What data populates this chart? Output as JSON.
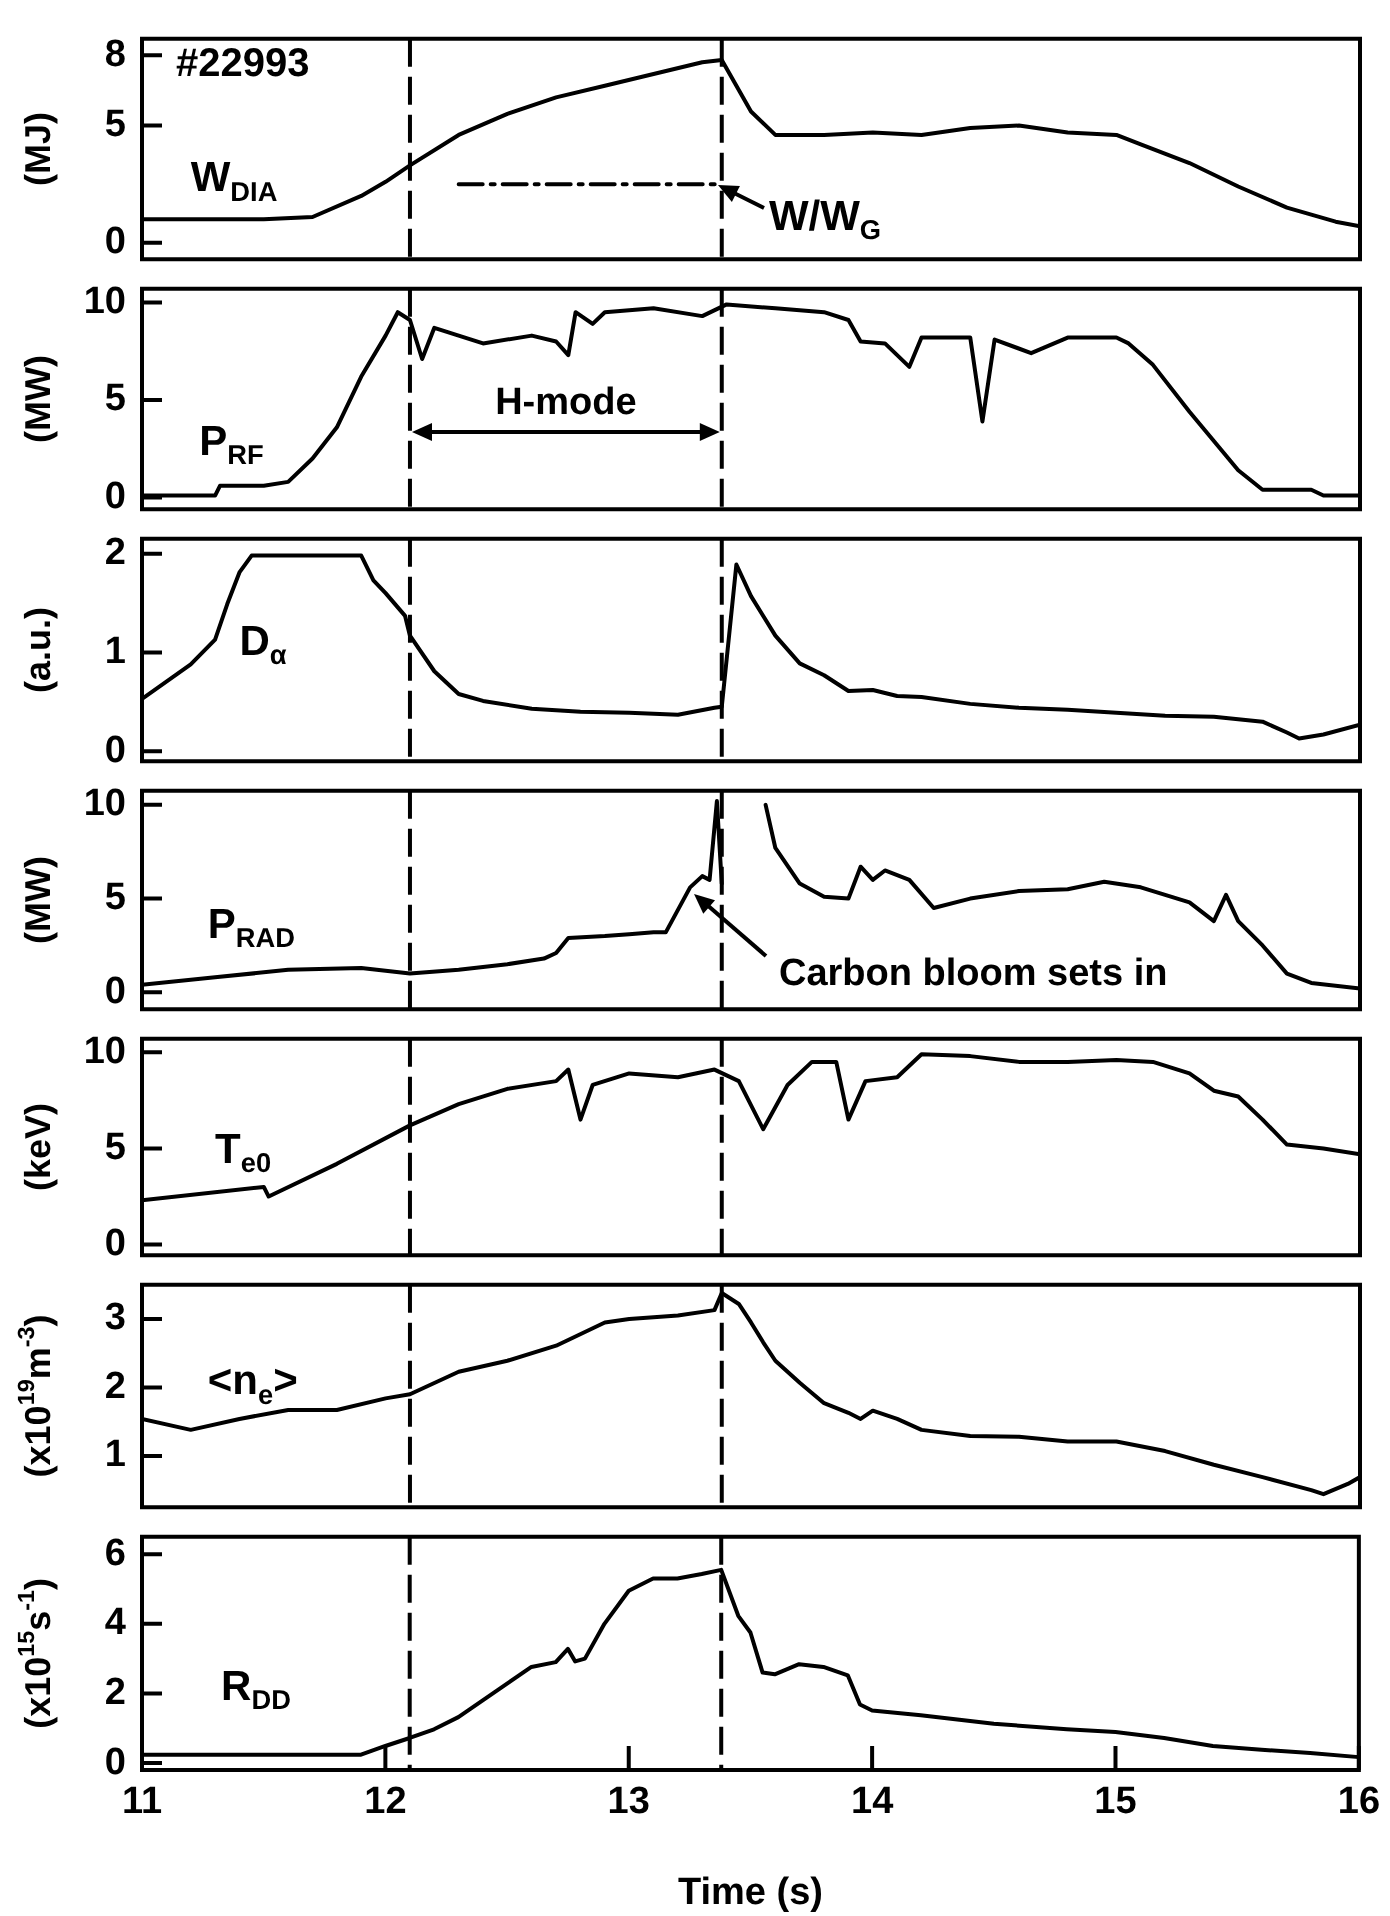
{
  "chart_data": [
    {
      "type": "line",
      "ylabel": "(MJ)",
      "xlim": [
        11,
        16
      ],
      "xticks": [
        11,
        12,
        13,
        14,
        15,
        16
      ],
      "ylim": [
        -0.7,
        8.7
      ],
      "yticks": [
        0,
        5,
        8
      ],
      "tick_labels": "y",
      "x": [
        11.0,
        11.5,
        11.7,
        11.9,
        12.0,
        12.1,
        12.3,
        12.5,
        12.7,
        12.9,
        13.1,
        13.3,
        13.38,
        13.5,
        13.6,
        13.8,
        14.0,
        14.2,
        14.4,
        14.6,
        14.8,
        15.0,
        15.1,
        15.3,
        15.5,
        15.7,
        15.9,
        16.0
      ],
      "series": [
        {
          "name": "W$_{DIA}$",
          "color": "#000000",
          "values": [
            1.0,
            1.0,
            1.1,
            2.0,
            2.6,
            3.3,
            4.6,
            5.5,
            6.2,
            6.7,
            7.2,
            7.7,
            7.8,
            5.6,
            4.6,
            4.6,
            4.7,
            4.6,
            4.9,
            5.0,
            4.7,
            4.6,
            4.2,
            3.4,
            2.4,
            1.5,
            0.9,
            0.7
          ]
        },
        {
          "color": "#000000",
          "line_style": "dashed",
          "x": [
            12.3,
            13.36
          ],
          "values": [
            2.5,
            2.5
          ]
        }
      ],
      "ref_lines": [
        {
          "axis": "x",
          "value": 12.1,
          "line_style": "dashed",
          "color": "#000000"
        },
        {
          "axis": "x",
          "value": 13.38,
          "line_style": "dashed",
          "color": "#000000"
        }
      ],
      "annotations": [
        "#22993",
        {
          "text": "W/W$_{G}$",
          "x": 13.36,
          "y": 2.5
        }
      ]
    },
    {
      "type": "line",
      "ylabel": "(MW)",
      "xlim": [
        11,
        16
      ],
      "xticks": [
        11,
        12,
        13,
        14,
        15,
        16
      ],
      "ylim": [
        -0.6,
        10.7
      ],
      "yticks": [
        0,
        5,
        10
      ],
      "tick_labels": "y",
      "legend": false,
      "x": [
        11.0,
        11.3,
        11.32,
        11.5,
        11.6,
        11.7,
        11.8,
        11.9,
        12.0,
        12.05,
        12.1,
        12.15,
        12.2,
        12.4,
        12.6,
        12.7,
        12.75,
        12.78,
        12.85,
        12.9,
        13.1,
        13.3,
        13.4,
        13.6,
        13.8,
        13.9,
        13.95,
        14.05,
        14.15,
        14.2,
        14.4,
        14.45,
        14.5,
        14.65,
        14.8,
        15.0,
        15.05,
        15.15,
        15.3,
        15.5,
        15.6,
        15.8,
        15.85,
        16.0
      ],
      "series": [
        {
          "name": "P$_{RF}$",
          "color": "#000000",
          "values": [
            0.1,
            0.1,
            0.6,
            0.6,
            0.8,
            2.0,
            3.6,
            6.2,
            8.3,
            9.5,
            9.1,
            7.1,
            8.7,
            7.9,
            8.3,
            8.0,
            7.3,
            9.5,
            8.9,
            9.5,
            9.7,
            9.3,
            9.9,
            9.7,
            9.5,
            9.1,
            8.0,
            7.9,
            6.7,
            8.2,
            8.2,
            3.9,
            8.1,
            7.4,
            8.2,
            8.2,
            7.9,
            6.8,
            4.4,
            1.4,
            0.4,
            0.4,
            0.1,
            0.1
          ]
        }
      ],
      "ref_lines": [
        {
          "axis": "x",
          "value": 12.1,
          "line_style": "dashed",
          "color": "#000000"
        },
        {
          "axis": "x",
          "value": 13.38,
          "line_style": "dashed",
          "color": "#000000"
        }
      ],
      "annotations": [
        "H-mode"
      ]
    },
    {
      "type": "line",
      "ylabel": "(a.u.)",
      "xlim": [
        11,
        16
      ],
      "xticks": [
        11,
        12,
        13,
        14,
        15,
        16
      ],
      "ylim": [
        -0.1,
        2.15
      ],
      "yticks": [
        0,
        1,
        2
      ],
      "tick_labels": "y",
      "legend": false,
      "x": [
        11.0,
        11.2,
        11.3,
        11.35,
        11.4,
        11.45,
        11.9,
        11.95,
        12.0,
        12.08,
        12.1,
        12.2,
        12.3,
        12.4,
        12.6,
        12.8,
        13.0,
        13.2,
        13.35,
        13.38,
        13.44,
        13.5,
        13.6,
        13.7,
        13.8,
        13.9,
        14.0,
        14.1,
        14.2,
        14.4,
        14.6,
        14.8,
        15.0,
        15.2,
        15.4,
        15.6,
        15.7,
        15.75,
        15.85,
        16.0
      ],
      "series": [
        {
          "name": "D$_{α}$",
          "color": "#000000",
          "values": [
            0.53,
            0.88,
            1.13,
            1.49,
            1.81,
            1.98,
            1.98,
            1.73,
            1.6,
            1.37,
            1.17,
            0.81,
            0.58,
            0.51,
            0.43,
            0.4,
            0.39,
            0.37,
            0.44,
            0.45,
            1.89,
            1.57,
            1.17,
            0.89,
            0.77,
            0.61,
            0.62,
            0.56,
            0.55,
            0.48,
            0.44,
            0.42,
            0.39,
            0.36,
            0.35,
            0.3,
            0.19,
            0.13,
            0.17,
            0.27
          ]
        }
      ],
      "ref_lines": [
        {
          "axis": "x",
          "value": 12.1,
          "line_style": "dashed",
          "color": "#000000"
        },
        {
          "axis": "x",
          "value": 13.38,
          "line_style": "dashed",
          "color": "#000000"
        }
      ]
    },
    {
      "type": "line",
      "ylabel": "(MW)",
      "xlim": [
        11,
        16
      ],
      "xticks": [
        11,
        12,
        13,
        14,
        15,
        16
      ],
      "ylim": [
        -0.9,
        10.75
      ],
      "yticks": [
        0,
        5,
        10
      ],
      "tick_labels": "y",
      "legend": false,
      "x": [
        11.0,
        11.3,
        11.6,
        11.9,
        12.1,
        12.3,
        12.5,
        12.65,
        12.7,
        12.75,
        12.9,
        13.0,
        13.1,
        13.15,
        13.25,
        13.3,
        13.33,
        13.36,
        13.38,
        13.45,
        13.56,
        13.6,
        13.7,
        13.8,
        13.9,
        13.95,
        14.0,
        14.05,
        14.15,
        14.25,
        14.4,
        14.6,
        14.8,
        14.95,
        15.1,
        15.3,
        15.4,
        15.45,
        15.5,
        15.6,
        15.7,
        15.8,
        16.0
      ],
      "series": [
        {
          "name": "P$_{RAD}$",
          "color": "#000000",
          "values": [
            0.4,
            0.8,
            1.2,
            1.3,
            1.0,
            1.2,
            1.5,
            1.8,
            2.1,
            2.9,
            3.0,
            3.1,
            3.2,
            3.2,
            5.6,
            6.2,
            6.0,
            10.2,
            5.8,
            null,
            10.0,
            7.7,
            5.8,
            5.1,
            5.0,
            6.7,
            6.0,
            6.5,
            6.0,
            4.5,
            5.0,
            5.4,
            5.5,
            5.9,
            5.6,
            4.8,
            3.8,
            5.2,
            3.8,
            2.5,
            1.0,
            0.5,
            0.2
          ]
        }
      ],
      "ref_lines": [
        {
          "axis": "x",
          "value": 12.1,
          "line_style": "dashed",
          "color": "#000000"
        },
        {
          "axis": "x",
          "value": 13.38,
          "line_style": "dashed",
          "color": "#000000"
        }
      ],
      "annotations": [
        {
          "text": "Carbon bloom sets in",
          "x": 13.27,
          "y": 5.2
        }
      ]
    },
    {
      "type": "line",
      "ylabel": "(keV)",
      "xlim": [
        11,
        16
      ],
      "xticks": [
        11,
        12,
        13,
        14,
        15,
        16
      ],
      "ylim": [
        -0.55,
        10.7
      ],
      "yticks": [
        0,
        5,
        10
      ],
      "tick_labels": "y",
      "legend": false,
      "x": [
        11.0,
        11.5,
        11.52,
        11.8,
        12.1,
        12.3,
        12.5,
        12.7,
        12.75,
        12.8,
        12.85,
        13.0,
        13.2,
        13.35,
        13.45,
        13.55,
        13.65,
        13.75,
        13.85,
        13.9,
        13.97,
        14.1,
        14.2,
        14.4,
        14.6,
        14.8,
        15.0,
        15.15,
        15.3,
        15.4,
        15.5,
        15.6,
        15.7,
        15.85,
        16.0
      ],
      "series": [
        {
          "name": "T$_{e0}$",
          "color": "#000000",
          "values": [
            2.3,
            3.0,
            2.5,
            4.2,
            6.2,
            7.3,
            8.1,
            8.5,
            9.1,
            6.5,
            8.3,
            8.9,
            8.7,
            9.1,
            8.5,
            6.0,
            8.3,
            9.5,
            9.5,
            6.5,
            8.5,
            8.7,
            9.9,
            9.8,
            9.5,
            9.5,
            9.6,
            9.5,
            8.9,
            8.0,
            7.7,
            6.5,
            5.2,
            5.0,
            4.7
          ]
        }
      ],
      "ref_lines": [
        {
          "axis": "x",
          "value": 12.1,
          "line_style": "dashed",
          "color": "#000000"
        },
        {
          "axis": "x",
          "value": 13.38,
          "line_style": "dashed",
          "color": "#000000"
        }
      ]
    },
    {
      "type": "line",
      "ylabel": "(x10$^{19}$m$^{-3}$)",
      "xlim": [
        11,
        16
      ],
      "xticks": [
        11,
        12,
        13,
        14,
        15,
        16
      ],
      "ylim": [
        0.25,
        3.5
      ],
      "yticks": [
        1,
        2,
        3
      ],
      "tick_labels": "y",
      "legend": false,
      "x": [
        11.0,
        11.2,
        11.4,
        11.6,
        11.8,
        12.0,
        12.1,
        12.3,
        12.5,
        12.7,
        12.9,
        13.0,
        13.2,
        13.35,
        13.38,
        13.45,
        13.5,
        13.55,
        13.6,
        13.7,
        13.8,
        13.9,
        13.95,
        14.0,
        14.1,
        14.2,
        14.4,
        14.6,
        14.8,
        15.0,
        15.2,
        15.4,
        15.6,
        15.8,
        15.85,
        15.95,
        16.0
      ],
      "series": [
        {
          "name": "<n$_{e}$>",
          "color": "#000000",
          "values": [
            1.54,
            1.38,
            1.54,
            1.67,
            1.67,
            1.84,
            1.9,
            2.23,
            2.39,
            2.61,
            2.95,
            3.0,
            3.05,
            3.13,
            3.38,
            3.22,
            2.95,
            2.66,
            2.39,
            2.07,
            1.77,
            1.63,
            1.54,
            1.66,
            1.54,
            1.38,
            1.29,
            1.28,
            1.21,
            1.21,
            1.07,
            0.87,
            0.69,
            0.5,
            0.44,
            0.59,
            0.69
          ]
        }
      ],
      "ref_lines": [
        {
          "axis": "x",
          "value": 12.1,
          "line_style": "dashed",
          "color": "#000000"
        },
        {
          "axis": "x",
          "value": 13.38,
          "line_style": "dashed",
          "color": "#000000"
        }
      ]
    },
    {
      "type": "line",
      "ylabel": "(x10$^{15}$s$^{-1}$)",
      "xlabel": "Time (s)",
      "xlim": [
        11,
        16
      ],
      "xticks": [
        11,
        12,
        13,
        14,
        15,
        16
      ],
      "ylim": [
        -0.2,
        6.5
      ],
      "yticks": [
        0,
        2,
        4,
        6
      ],
      "legend": false,
      "x": [
        11.0,
        11.9,
        12.0,
        12.1,
        12.2,
        12.3,
        12.4,
        12.5,
        12.6,
        12.7,
        12.75,
        12.78,
        12.82,
        12.9,
        13.0,
        13.1,
        13.2,
        13.3,
        13.38,
        13.45,
        13.5,
        13.55,
        13.6,
        13.7,
        13.8,
        13.9,
        13.95,
        14.0,
        14.2,
        14.5,
        14.8,
        15.0,
        15.2,
        15.4,
        15.6,
        15.8,
        16.0
      ],
      "series": [
        {
          "name": "R$_{DD}$",
          "color": "#000000",
          "values": [
            0.24,
            0.24,
            0.49,
            0.72,
            0.97,
            1.32,
            1.8,
            2.28,
            2.76,
            2.9,
            3.28,
            2.92,
            3.0,
            4.0,
            4.95,
            5.3,
            5.3,
            5.43,
            5.55,
            4.23,
            3.75,
            2.6,
            2.55,
            2.84,
            2.76,
            2.52,
            1.68,
            1.51,
            1.37,
            1.13,
            0.97,
            0.89,
            0.72,
            0.49,
            0.38,
            0.29,
            0.17
          ]
        }
      ],
      "ref_lines": [
        {
          "axis": "x",
          "value": 12.1,
          "line_style": "dashed",
          "color": "#000000"
        },
        {
          "axis": "x",
          "value": 13.38,
          "line_style": "dashed",
          "color": "#000000"
        }
      ]
    }
  ]
}
